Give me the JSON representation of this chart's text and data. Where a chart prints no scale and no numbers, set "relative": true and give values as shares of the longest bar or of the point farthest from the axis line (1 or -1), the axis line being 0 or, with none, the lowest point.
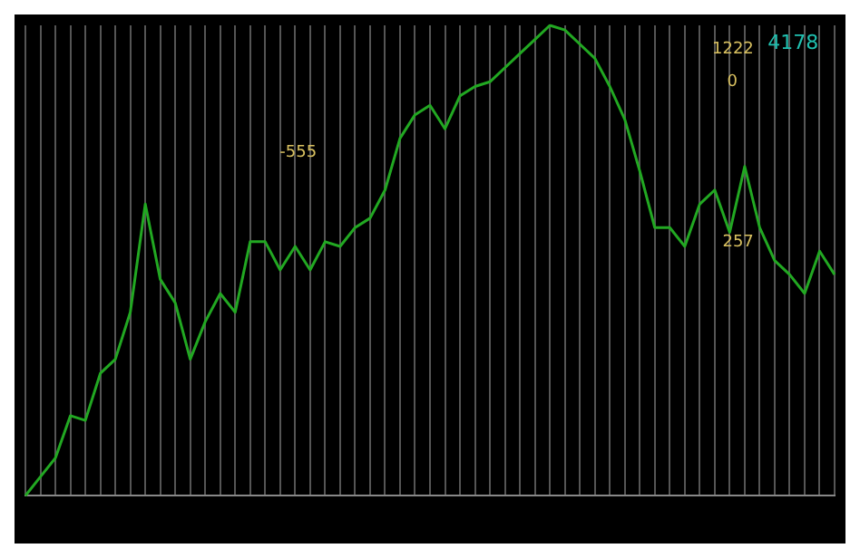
{
  "chart_data": {
    "type": "line",
    "relative": true,
    "categories": [
      null,
      null,
      null,
      null,
      null,
      null,
      null,
      null,
      null,
      null,
      null,
      null,
      null,
      null,
      null,
      null,
      null,
      null,
      null,
      null,
      null,
      null,
      null,
      null,
      null,
      null,
      null,
      null,
      null,
      null,
      null,
      null,
      null,
      null,
      null,
      null,
      null,
      null,
      null,
      null,
      null,
      null,
      null,
      null,
      null,
      null,
      null,
      null,
      null,
      null,
      null,
      null,
      null,
      null,
      null
    ],
    "series": [
      {
        "color": "#22a822",
        "values": [
          0,
          0.04,
          0.08,
          0.17,
          0.16,
          0.26,
          0.29,
          0.39,
          0.62,
          0.46,
          0.41,
          0.29,
          0.37,
          0.43,
          0.39,
          0.54,
          0.54,
          0.48,
          0.53,
          0.48,
          0.54,
          0.53,
          0.57,
          0.59,
          0.65,
          0.76,
          0.81,
          0.83,
          0.78,
          0.85,
          0.87,
          0.88,
          0.91,
          0.94,
          0.97,
          1,
          0.99,
          0.96,
          0.93,
          0.87,
          0.8,
          0.69,
          0.57,
          0.57,
          0.53,
          0.62,
          0.65,
          0.56,
          0.7,
          0.57,
          0.5,
          0.47,
          0.43,
          0.52,
          0.47
        ]
      }
    ],
    "grid": "x",
    "marker": "none",
    "annotations": [
      "4178",
      "1222",
      "0",
      "-555",
      "257"
    ]
  }
}
